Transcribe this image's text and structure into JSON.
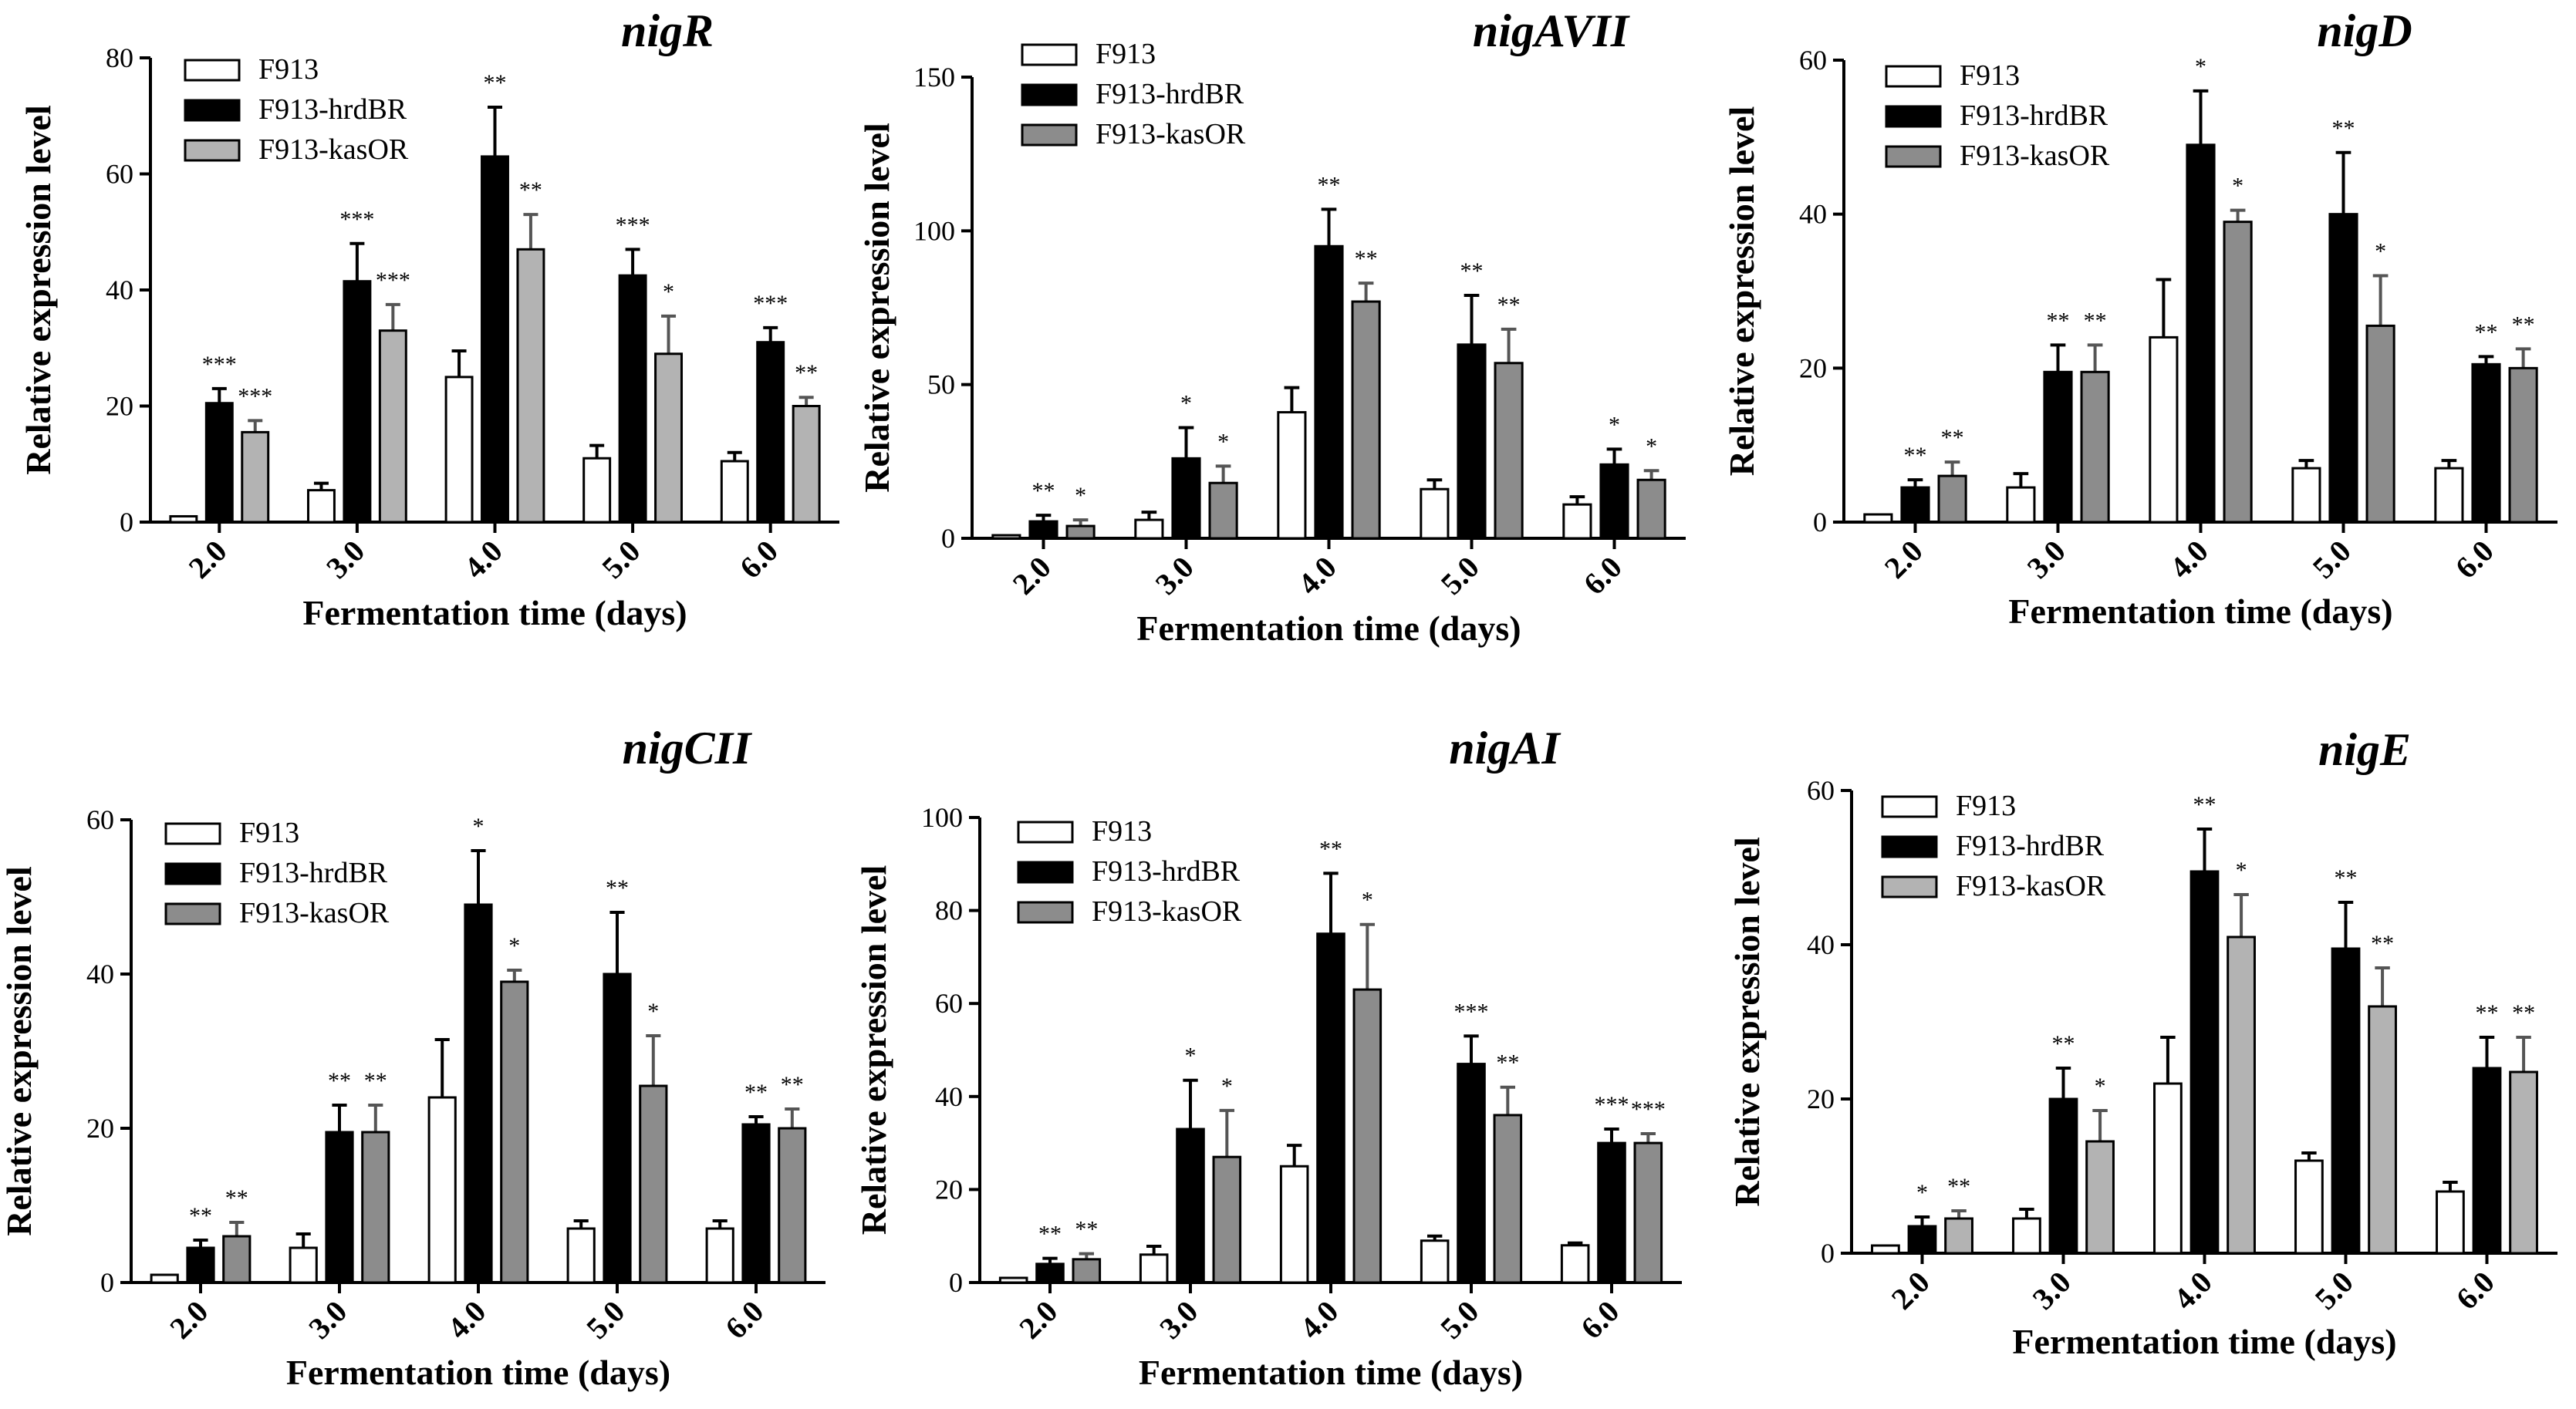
{
  "chart_data": [
    {
      "type": "bar",
      "title": "nigR",
      "xlabel": "Fermentation time (days)",
      "ylabel": "Relative expression level",
      "ylim": [
        0,
        80
      ],
      "yticks": [
        "0",
        "20",
        "40",
        "60",
        "80"
      ],
      "categories": [
        "2.0",
        "3.0",
        "4.0",
        "5.0",
        "6.0"
      ],
      "series": [
        {
          "name": "F913",
          "values": [
            1,
            5.5,
            25,
            11,
            10.5
          ],
          "errors": [
            0,
            1.2,
            4.5,
            2.2,
            1.5
          ]
        },
        {
          "name": "F913-hrdBR",
          "values": [
            20.5,
            41.5,
            63,
            42.5,
            31
          ],
          "errors": [
            2.5,
            6.5,
            8.5,
            4.5,
            2.5
          ]
        },
        {
          "name": "F913-kasOR",
          "values": [
            15.5,
            33,
            47,
            29,
            20
          ],
          "errors": [
            2,
            4.5,
            6,
            6.5,
            1.5
          ]
        }
      ],
      "significance": [
        {
          "hrdBR": "***",
          "kasOR": "***"
        },
        {
          "hrdBR": "***",
          "kasOR": "***"
        },
        {
          "hrdBR": "**",
          "kasOR": "**"
        },
        {
          "hrdBR": "***",
          "kasOR": "*"
        },
        {
          "hrdBR": "***",
          "kasOR": "**"
        }
      ],
      "legend_position": "top-left",
      "kasOR_color": "#b3b3b3"
    },
    {
      "type": "bar",
      "title": "nigAVII",
      "xlabel": "Fermentation time (days)",
      "ylabel": "Relative expression level",
      "ylim": [
        0,
        150
      ],
      "yticks": [
        "0",
        "50",
        "100",
        "150"
      ],
      "categories": [
        "2.0",
        "3.0",
        "4.0",
        "5.0",
        "6.0"
      ],
      "series": [
        {
          "name": "F913",
          "values": [
            1,
            6,
            41,
            16,
            11
          ],
          "errors": [
            0,
            2.5,
            8,
            3,
            2.5
          ]
        },
        {
          "name": "F913-hrdBR",
          "values": [
            5.5,
            26,
            95,
            63,
            24
          ],
          "errors": [
            2,
            10,
            12,
            16,
            5
          ]
        },
        {
          "name": "F913-kasOR",
          "values": [
            4,
            18,
            77,
            57,
            19
          ],
          "errors": [
            2,
            5.5,
            6,
            11,
            3
          ]
        }
      ],
      "significance": [
        {
          "hrdBR": "**",
          "kasOR": "*"
        },
        {
          "hrdBR": "*",
          "kasOR": "*"
        },
        {
          "hrdBR": "**",
          "kasOR": "**"
        },
        {
          "hrdBR": "**",
          "kasOR": "**"
        },
        {
          "hrdBR": "*",
          "kasOR": "*"
        }
      ],
      "legend_position": "top-left",
      "kasOR_color": "#8c8c8c"
    },
    {
      "type": "bar",
      "title": "nigD",
      "xlabel": "Fermentation time (days)",
      "ylabel": "Relative expression level",
      "ylim": [
        0,
        60
      ],
      "yticks": [
        "0",
        "20",
        "40",
        "60"
      ],
      "categories": [
        "2.0",
        "3.0",
        "4.0",
        "5.0",
        "6.0"
      ],
      "series": [
        {
          "name": "F913",
          "values": [
            1,
            4.5,
            24,
            7,
            7
          ],
          "errors": [
            0,
            1.8,
            7.5,
            1,
            1
          ]
        },
        {
          "name": "F913-hrdBR",
          "values": [
            4.5,
            19.5,
            49,
            40,
            20.5
          ],
          "errors": [
            1,
            3.5,
            7,
            8,
            1
          ]
        },
        {
          "name": "F913-kasOR",
          "values": [
            6,
            19.5,
            39,
            25.5,
            20
          ],
          "errors": [
            1.8,
            3.5,
            1.5,
            6.5,
            2.5
          ]
        }
      ],
      "significance": [
        {
          "hrdBR": "**",
          "kasOR": "**"
        },
        {
          "hrdBR": "**",
          "kasOR": "**"
        },
        {
          "hrdBR": "*",
          "kasOR": "*"
        },
        {
          "hrdBR": "**",
          "kasOR": "*"
        },
        {
          "hrdBR": "**",
          "kasOR": "**"
        }
      ],
      "legend_position": "top-left",
      "kasOR_color": "#8c8c8c"
    },
    {
      "type": "bar",
      "title": "nigCII",
      "xlabel": "Fermentation time (days)",
      "ylabel": "Relative expression level",
      "ylim": [
        0,
        60
      ],
      "yticks": [
        "0",
        "20",
        "40",
        "60"
      ],
      "categories": [
        "2.0",
        "3.0",
        "4.0",
        "5.0",
        "6.0"
      ],
      "series": [
        {
          "name": "F913",
          "values": [
            1,
            4.5,
            24,
            7,
            7
          ],
          "errors": [
            0,
            1.8,
            7.5,
            1,
            1
          ]
        },
        {
          "name": "F913-hrdBR",
          "values": [
            4.5,
            19.5,
            49,
            40,
            20.5
          ],
          "errors": [
            1,
            3.5,
            7,
            8,
            1
          ]
        },
        {
          "name": "F913-kasOR",
          "values": [
            6,
            19.5,
            39,
            25.5,
            20
          ],
          "errors": [
            1.8,
            3.5,
            1.5,
            6.5,
            2.5
          ]
        }
      ],
      "significance": [
        {
          "hrdBR": "**",
          "kasOR": "**"
        },
        {
          "hrdBR": "**",
          "kasOR": "**"
        },
        {
          "hrdBR": "*",
          "kasOR": "*"
        },
        {
          "hrdBR": "**",
          "kasOR": "*"
        },
        {
          "hrdBR": "**",
          "kasOR": "**"
        }
      ],
      "legend_position": "top-left",
      "kasOR_color": "#8c8c8c"
    },
    {
      "type": "bar",
      "title": "nigAI",
      "xlabel": "Fermentation time (days)",
      "ylabel": "Relative expression level",
      "ylim": [
        0,
        100
      ],
      "yticks": [
        "0",
        "20",
        "40",
        "60",
        "80",
        "100"
      ],
      "categories": [
        "2.0",
        "3.0",
        "4.0",
        "5.0",
        "6.0"
      ],
      "series": [
        {
          "name": "F913",
          "values": [
            1,
            6,
            25,
            9,
            8
          ],
          "errors": [
            0,
            1.8,
            4.5,
            1,
            0.5
          ]
        },
        {
          "name": "F913-hrdBR",
          "values": [
            4,
            33,
            75,
            47,
            30
          ],
          "errors": [
            1.2,
            10.5,
            13,
            6,
            3
          ]
        },
        {
          "name": "F913-kasOR",
          "values": [
            5,
            27,
            63,
            36,
            30
          ],
          "errors": [
            1.2,
            10,
            14,
            6,
            2
          ]
        }
      ],
      "significance": [
        {
          "hrdBR": "**",
          "kasOR": "**"
        },
        {
          "hrdBR": "*",
          "kasOR": "*"
        },
        {
          "hrdBR": "**",
          "kasOR": "*"
        },
        {
          "hrdBR": "***",
          "kasOR": "**"
        },
        {
          "hrdBR": "***",
          "kasOR": "***"
        }
      ],
      "legend_position": "top-left",
      "kasOR_color": "#8c8c8c"
    },
    {
      "type": "bar",
      "title": "nigE",
      "xlabel": "Fermentation time (days)",
      "ylabel": "Relative expression level",
      "ylim": [
        0,
        60
      ],
      "yticks": [
        "0",
        "20",
        "40",
        "60"
      ],
      "categories": [
        "2.0",
        "3.0",
        "4.0",
        "5.0",
        "6.0"
      ],
      "series": [
        {
          "name": "F913",
          "values": [
            1,
            4.5,
            22,
            12,
            8
          ],
          "errors": [
            0,
            1.2,
            6,
            1,
            1.2
          ]
        },
        {
          "name": "F913-hrdBR",
          "values": [
            3.5,
            20,
            49.5,
            39.5,
            24
          ],
          "errors": [
            1.2,
            4,
            5.5,
            6,
            4
          ]
        },
        {
          "name": "F913-kasOR",
          "values": [
            4.5,
            14.5,
            41,
            32,
            23.5
          ],
          "errors": [
            1,
            4,
            5.5,
            5,
            4.5
          ]
        }
      ],
      "significance": [
        {
          "hrdBR": "*",
          "kasOR": "**"
        },
        {
          "hrdBR": "**",
          "kasOR": "*"
        },
        {
          "hrdBR": "**",
          "kasOR": "*"
        },
        {
          "hrdBR": "**",
          "kasOR": "**"
        },
        {
          "hrdBR": "**",
          "kasOR": "**"
        }
      ],
      "legend_position": "top-left",
      "kasOR_color": "#b3b3b3"
    }
  ],
  "colors": {
    "F913": "#ffffff",
    "F913-hrdBR": "#000000",
    "axis": "#000000"
  }
}
